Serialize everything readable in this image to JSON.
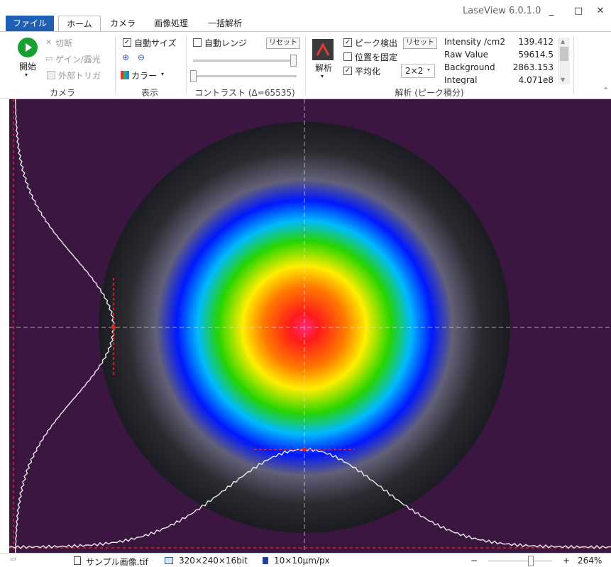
{
  "app": {
    "title": "LaseView 6.0.1.0"
  },
  "window": {
    "minimize": "_",
    "maximize": "□",
    "close": "✕"
  },
  "tabs": {
    "file": "ファイル",
    "home": "ホーム",
    "camera": "カメラ",
    "image": "画像処理",
    "batch": "一括解析"
  },
  "camera_group": {
    "start": "開始",
    "switch": "切断",
    "gain": "ゲイン/露光",
    "trigger": "外部トリガ",
    "label": "カメラ"
  },
  "display_group": {
    "auto_size": "自動サイズ",
    "color": "カラー",
    "label": "表示"
  },
  "contrast_group": {
    "auto_range": "自動レンジ",
    "reset": "リセット",
    "label": "コントラスト (Δ=65535)"
  },
  "analysis_group": {
    "analyze": "解析",
    "peak_detect": "ピーク検出",
    "reset": "リセット",
    "fix_position": "位置を固定",
    "average": "平均化",
    "average_value": "2×2",
    "label": "解析 (ピーク積分)"
  },
  "stats": [
    {
      "name": "Intensity /cm2",
      "value": "139.412"
    },
    {
      "name": "Raw Value",
      "value": "59614.5"
    },
    {
      "name": "Background",
      "value": "2863.153"
    },
    {
      "name": "Integral",
      "value": "4.071e8"
    }
  ],
  "status": {
    "file": "サンプル画像.tif",
    "size": "320×240×16bit",
    "pixel": "10×10μm/px",
    "zoom_minus": "−",
    "zoom_plus": "+",
    "zoom": "264%"
  },
  "colors": {
    "file_tab": "#1f5fb4",
    "start_button": "#18a033",
    "canvas_background": "#3b1641",
    "marker": "#e02020"
  }
}
